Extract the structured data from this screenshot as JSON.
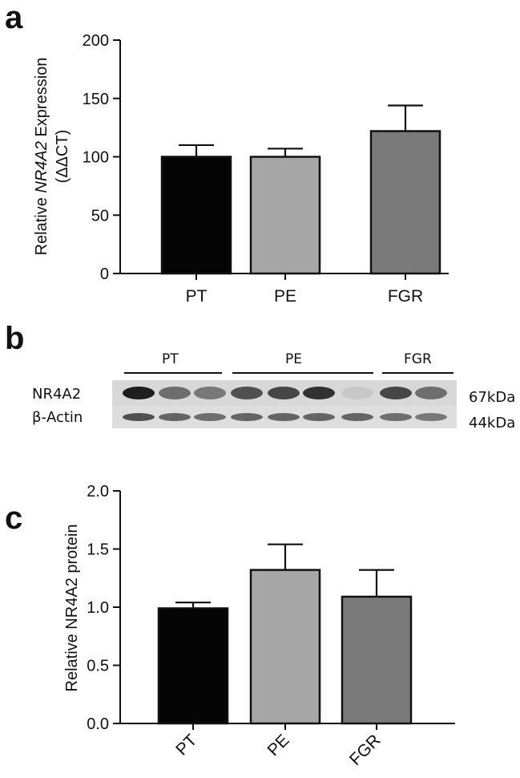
{
  "panels": {
    "a": "a",
    "b": "b",
    "c": "c"
  },
  "chart_data": [
    {
      "type": "bar",
      "categories": [
        "PT",
        "PE",
        "FGR"
      ],
      "values": [
        100,
        100,
        122
      ],
      "errors": [
        10,
        7,
        22
      ],
      "colors": [
        "#050505",
        "#a6a6a6",
        "#7a7a7a"
      ],
      "ylabel_parts": [
        "Relative ",
        "NR4A2",
        " Expression"
      ],
      "ylabel_line2": "(ΔΔCT)",
      "ylim": [
        0,
        200
      ],
      "yticks": [
        0,
        50,
        100,
        150,
        200
      ],
      "ytick_labels": [
        "0",
        "50",
        "100",
        "150",
        "200"
      ]
    },
    {
      "type": "bar",
      "categories": [
        "PT",
        "PE",
        "FGR"
      ],
      "values": [
        0.99,
        1.32,
        1.09
      ],
      "errors": [
        0.05,
        0.22,
        0.23
      ],
      "colors": [
        "#050505",
        "#a6a6a6",
        "#7a7a7a"
      ],
      "ylabel": "Relative NR4A2 protein",
      "ylim": [
        0,
        2.0
      ],
      "yticks": [
        0,
        0.5,
        1.0,
        1.5,
        2.0
      ],
      "ytick_labels": [
        "0.0",
        "0.5",
        "1.0",
        "1.5",
        "2.0"
      ]
    }
  ],
  "blot": {
    "groups": [
      "PT",
      "PE",
      "FGR"
    ],
    "rows": [
      {
        "label": "NR4A2",
        "size": "67kDa",
        "intensities": [
          0.95,
          0.55,
          0.5,
          0.7,
          0.75,
          0.85,
          0.1,
          0.75,
          0.55
        ]
      },
      {
        "label": "β-Actin",
        "size": "44kDa",
        "intensities": [
          0.7,
          0.6,
          0.55,
          0.6,
          0.6,
          0.6,
          0.6,
          0.55,
          0.5
        ]
      }
    ]
  }
}
